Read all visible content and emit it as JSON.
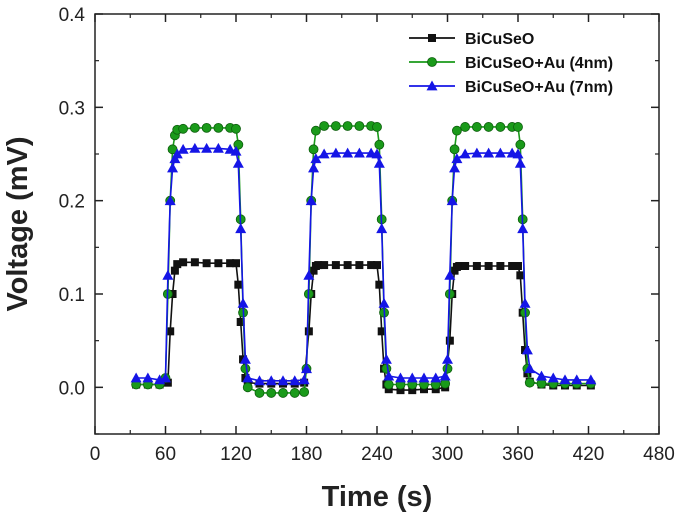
{
  "chart_data": {
    "type": "line",
    "title": "",
    "xlabel": "Time (s)",
    "ylabel": "Voltage (mV)",
    "xlim": [
      0,
      480
    ],
    "ylim": [
      -0.05,
      0.4
    ],
    "xticks": [
      0,
      60,
      120,
      180,
      240,
      300,
      360,
      420,
      480
    ],
    "xtick_labels": [
      "0",
      "60",
      "120",
      "180",
      "240",
      "300",
      "360",
      "420",
      "480"
    ],
    "yticks": [
      0.0,
      0.1,
      0.2,
      0.3,
      0.4
    ],
    "ytick_labels": [
      "0.0",
      "0.1",
      "0.2",
      "0.3",
      "0.4"
    ],
    "grid": false,
    "legend_position": "top-right",
    "series": [
      {
        "name": "BiCuSeO",
        "color": "#111111",
        "marker": "square",
        "x": [
          35,
          45,
          55,
          62,
          64,
          66,
          68,
          70,
          75,
          85,
          95,
          105,
          115,
          120,
          122,
          124,
          126,
          128,
          130,
          140,
          150,
          160,
          170,
          178,
          182,
          184,
          186,
          188,
          190,
          195,
          205,
          215,
          225,
          235,
          240,
          242,
          244,
          246,
          248,
          250,
          260,
          270,
          280,
          290,
          298,
          302,
          304,
          306,
          308,
          310,
          315,
          325,
          335,
          345,
          355,
          360,
          362,
          364,
          366,
          368,
          370,
          380,
          390,
          400,
          410,
          422
        ],
        "y": [
          0.003,
          0.003,
          0.003,
          0.005,
          0.06,
          0.1,
          0.125,
          0.132,
          0.134,
          0.134,
          0.133,
          0.133,
          0.133,
          0.133,
          0.11,
          0.07,
          0.03,
          0.01,
          0.005,
          0.004,
          0.004,
          0.004,
          0.004,
          0.005,
          0.06,
          0.1,
          0.125,
          0.13,
          0.131,
          0.131,
          0.131,
          0.131,
          0.131,
          0.131,
          0.131,
          0.11,
          0.06,
          0.02,
          0.003,
          -0.002,
          -0.003,
          -0.003,
          -0.002,
          -0.002,
          0.0,
          0.05,
          0.1,
          0.125,
          0.129,
          0.13,
          0.13,
          0.13,
          0.13,
          0.13,
          0.13,
          0.13,
          0.12,
          0.08,
          0.04,
          0.015,
          0.006,
          0.003,
          0.002,
          0.002,
          0.002,
          0.002
        ]
      },
      {
        "name": "BiCuSeO+Au (4nm)",
        "color": "#1a9a1a",
        "marker": "circle",
        "x": [
          35,
          45,
          55,
          60,
          62,
          64,
          66,
          68,
          70,
          75,
          85,
          95,
          105,
          115,
          120,
          122,
          124,
          126,
          128,
          130,
          140,
          150,
          160,
          170,
          178,
          180,
          182,
          184,
          186,
          188,
          195,
          205,
          215,
          225,
          235,
          240,
          242,
          244,
          246,
          248,
          250,
          260,
          270,
          280,
          290,
          298,
          300,
          302,
          304,
          306,
          308,
          315,
          325,
          335,
          345,
          355,
          360,
          362,
          364,
          366,
          368,
          370,
          380,
          390,
          400,
          410,
          422
        ],
        "y": [
          0.003,
          0.003,
          0.003,
          0.01,
          0.1,
          0.2,
          0.255,
          0.27,
          0.276,
          0.277,
          0.278,
          0.278,
          0.278,
          0.278,
          0.277,
          0.26,
          0.18,
          0.08,
          0.02,
          0.0,
          -0.006,
          -0.006,
          -0.006,
          -0.006,
          -0.005,
          0.02,
          0.1,
          0.2,
          0.255,
          0.275,
          0.28,
          0.28,
          0.28,
          0.28,
          0.28,
          0.279,
          0.26,
          0.18,
          0.08,
          0.02,
          0.003,
          0.003,
          0.003,
          0.003,
          0.003,
          0.004,
          0.02,
          0.1,
          0.2,
          0.255,
          0.275,
          0.279,
          0.279,
          0.279,
          0.279,
          0.279,
          0.279,
          0.26,
          0.18,
          0.08,
          0.02,
          0.005,
          0.004,
          0.004,
          0.004,
          0.004,
          0.004
        ]
      },
      {
        "name": "BiCuSeO+Au (7nm)",
        "color": "#1515e6",
        "marker": "triangle",
        "x": [
          35,
          45,
          55,
          60,
          62,
          64,
          66,
          68,
          70,
          75,
          85,
          95,
          105,
          115,
          120,
          122,
          124,
          126,
          128,
          130,
          140,
          150,
          160,
          170,
          178,
          180,
          182,
          184,
          186,
          188,
          195,
          205,
          215,
          225,
          235,
          240,
          242,
          244,
          246,
          248,
          250,
          260,
          270,
          280,
          290,
          298,
          300,
          302,
          304,
          306,
          308,
          315,
          325,
          335,
          345,
          355,
          360,
          362,
          364,
          366,
          368,
          370,
          380,
          390,
          400,
          410,
          422
        ],
        "y": [
          0.01,
          0.01,
          0.008,
          0.01,
          0.12,
          0.2,
          0.235,
          0.245,
          0.25,
          0.255,
          0.256,
          0.256,
          0.256,
          0.255,
          0.253,
          0.24,
          0.17,
          0.09,
          0.03,
          0.01,
          0.007,
          0.007,
          0.007,
          0.007,
          0.008,
          0.02,
          0.12,
          0.2,
          0.235,
          0.245,
          0.25,
          0.251,
          0.251,
          0.251,
          0.251,
          0.25,
          0.24,
          0.17,
          0.09,
          0.03,
          0.012,
          0.01,
          0.01,
          0.01,
          0.01,
          0.012,
          0.03,
          0.12,
          0.2,
          0.235,
          0.245,
          0.25,
          0.251,
          0.251,
          0.251,
          0.251,
          0.25,
          0.24,
          0.17,
          0.09,
          0.04,
          0.02,
          0.012,
          0.01,
          0.008,
          0.008,
          0.008
        ]
      }
    ]
  }
}
